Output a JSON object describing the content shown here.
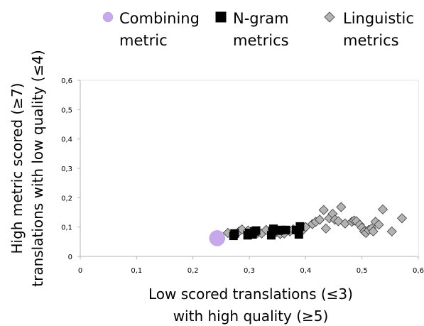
{
  "chart_data": {
    "type": "scatter",
    "title": "",
    "xlabel_lines": [
      "Low scored translations (≤3)",
      "with high quality (≥5)"
    ],
    "ylabel_lines": [
      "High metric scored (≥7)",
      "translations with low quality (≤4)"
    ],
    "xlim": [
      0,
      0.6
    ],
    "ylim": [
      0,
      0.6
    ],
    "x_tick_labels": [
      "0",
      "0,1",
      "0,2",
      "0,3",
      "0,4",
      "0,5",
      "0,6"
    ],
    "y_tick_labels": [
      "0",
      "0,1",
      "0,2",
      "0,3",
      "0,4",
      "0,5",
      "0,6"
    ],
    "grid": false,
    "legend_position": "top",
    "series": [
      {
        "name_lines": [
          "Combining",
          "metric"
        ],
        "marker": "circle",
        "color": "#c6a9ea",
        "points": [
          [
            0.243,
            0.062
          ]
        ]
      },
      {
        "name_lines": [
          "N-gram",
          "metrics"
        ],
        "marker": "square",
        "color": "#000000",
        "points": [
          [
            0.272,
            0.07
          ],
          [
            0.274,
            0.078
          ],
          [
            0.297,
            0.072
          ],
          [
            0.3,
            0.08
          ],
          [
            0.306,
            0.075
          ],
          [
            0.309,
            0.085
          ],
          [
            0.312,
            0.088
          ],
          [
            0.339,
            0.072
          ],
          [
            0.341,
            0.086
          ],
          [
            0.343,
            0.094
          ],
          [
            0.353,
            0.088
          ],
          [
            0.357,
            0.09
          ],
          [
            0.365,
            0.09
          ],
          [
            0.383,
            0.09
          ],
          [
            0.388,
            0.075
          ],
          [
            0.39,
            0.102
          ]
        ]
      },
      {
        "name_lines": [
          "Linguistic",
          "metrics"
        ],
        "marker": "diamond",
        "color": "#b3b3b3",
        "points": [
          [
            0.262,
            0.08
          ],
          [
            0.282,
            0.085
          ],
          [
            0.287,
            0.092
          ],
          [
            0.298,
            0.088
          ],
          [
            0.305,
            0.082
          ],
          [
            0.315,
            0.08
          ],
          [
            0.322,
            0.078
          ],
          [
            0.33,
            0.09
          ],
          [
            0.348,
            0.082
          ],
          [
            0.355,
            0.076
          ],
          [
            0.362,
            0.078
          ],
          [
            0.372,
            0.085
          ],
          [
            0.378,
            0.092
          ],
          [
            0.395,
            0.09
          ],
          [
            0.4,
            0.1
          ],
          [
            0.412,
            0.11
          ],
          [
            0.418,
            0.118
          ],
          [
            0.425,
            0.125
          ],
          [
            0.432,
            0.158
          ],
          [
            0.436,
            0.095
          ],
          [
            0.442,
            0.13
          ],
          [
            0.448,
            0.145
          ],
          [
            0.452,
            0.125
          ],
          [
            0.458,
            0.12
          ],
          [
            0.463,
            0.168
          ],
          [
            0.47,
            0.112
          ],
          [
            0.482,
            0.118
          ],
          [
            0.486,
            0.122
          ],
          [
            0.49,
            0.12
          ],
          [
            0.496,
            0.108
          ],
          [
            0.5,
            0.098
          ],
          [
            0.504,
            0.085
          ],
          [
            0.507,
            0.08
          ],
          [
            0.512,
            0.09
          ],
          [
            0.517,
            0.095
          ],
          [
            0.52,
            0.085
          ],
          [
            0.524,
            0.118
          ],
          [
            0.53,
            0.108
          ],
          [
            0.537,
            0.16
          ],
          [
            0.553,
            0.085
          ],
          [
            0.571,
            0.13
          ]
        ]
      }
    ]
  }
}
